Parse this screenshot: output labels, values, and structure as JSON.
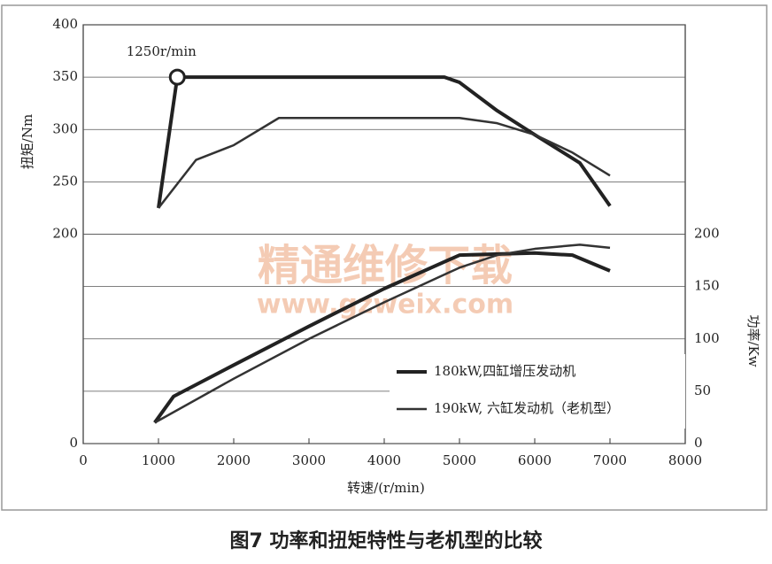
{
  "chart_data": {
    "type": "line",
    "caption": "图7 功率和扭矩特性与老机型的比较",
    "xlabel": "转速/(r/min)",
    "ylabel": "扭矩/Nm",
    "y2label": "功率/Kw",
    "annotation": {
      "text": "1250r/min",
      "x": 1250,
      "y": 350
    },
    "watermark": [
      "精通维修下载",
      "www.gzweix.com"
    ],
    "xlim": [
      0,
      8000
    ],
    "xticks": [
      0,
      1000,
      2000,
      3000,
      4000,
      5000,
      6000,
      7000,
      8000
    ],
    "ylim": [
      0,
      400
    ],
    "yticks": [
      0,
      200,
      250,
      300,
      350,
      400
    ],
    "y2lim": [
      0,
      400
    ],
    "y2ticks": [
      0,
      50,
      100,
      150,
      200
    ],
    "grid": true,
    "series": [
      {
        "name": "180kW,四缸增压发动机",
        "color": "#222",
        "line_width": 4,
        "axis": "y",
        "x": [
          1000,
          1250,
          4800,
          5000,
          5500,
          6000,
          6600,
          7000
        ],
        "values": [
          225,
          350,
          350,
          345,
          318,
          295,
          268,
          227
        ]
      },
      {
        "name": "190kW, 六缸发动机（老机型）",
        "color": "#333",
        "line_width": 2.5,
        "axis": "y",
        "x": [
          1000,
          1500,
          2000,
          2600,
          5000,
          5500,
          6000,
          6500,
          7000
        ],
        "values": [
          225,
          271,
          285,
          311,
          311,
          306,
          295,
          278,
          256
        ]
      },
      {
        "name": "180kW,四缸增压发动机",
        "color": "#222",
        "line_width": 4,
        "axis": "y2",
        "x": [
          950,
          1200,
          2000,
          3000,
          4000,
          5000,
          6000,
          6500,
          7000
        ],
        "values": [
          20,
          45,
          75,
          112,
          148,
          180,
          182,
          180,
          165
        ]
      },
      {
        "name": "190kW, 六缸发动机（老机型）",
        "color": "#333",
        "line_width": 2.5,
        "axis": "y2",
        "x": [
          950,
          2000,
          3000,
          4000,
          5000,
          5500,
          6000,
          6600,
          7000
        ],
        "values": [
          20,
          62,
          100,
          135,
          168,
          180,
          186,
          190,
          187
        ]
      }
    ]
  }
}
